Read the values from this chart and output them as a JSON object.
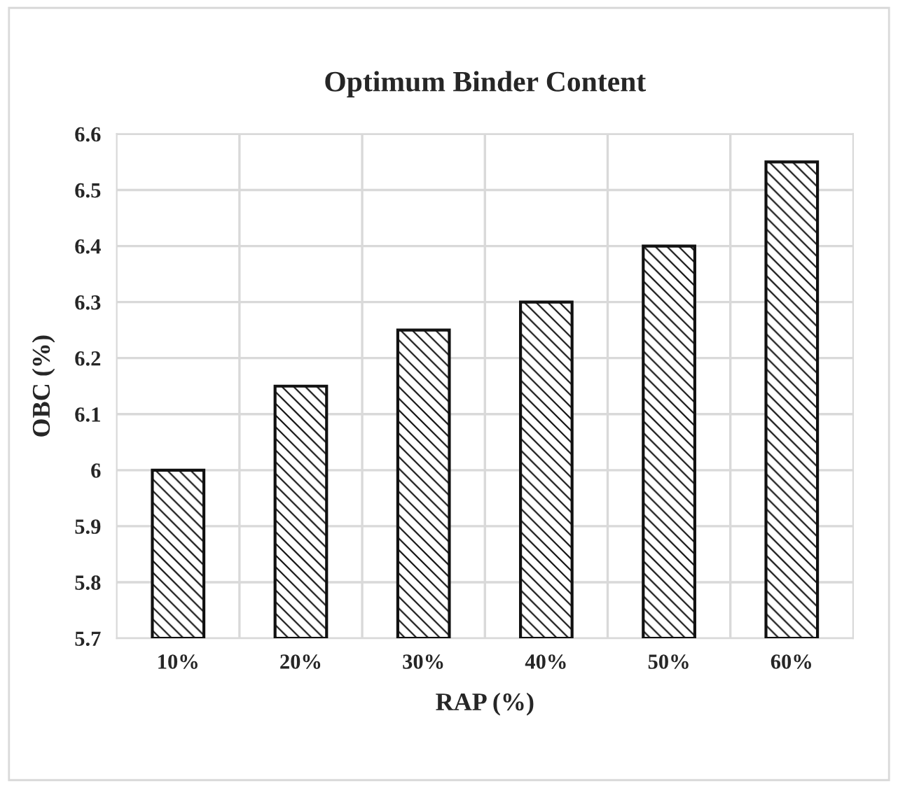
{
  "chart_data": {
    "type": "bar",
    "title": "Optimum Binder Content",
    "xlabel": "RAP (%)",
    "ylabel": "OBC (%)",
    "categories": [
      "10%",
      "20%",
      "30%",
      "40%",
      "50%",
      "60%"
    ],
    "values": [
      6.0,
      6.15,
      6.25,
      6.3,
      6.4,
      6.55
    ],
    "color": "#111111",
    "ylim": [
      5.7,
      6.6
    ],
    "yticks": [
      {
        "value": 5.7,
        "label": "5.7"
      },
      {
        "value": 5.8,
        "label": "5.8"
      },
      {
        "value": 5.9,
        "label": "5.9"
      },
      {
        "value": 6.0,
        "label": "6"
      },
      {
        "value": 6.1,
        "label": "6.1"
      },
      {
        "value": 6.2,
        "label": "6.2"
      },
      {
        "value": 6.3,
        "label": "6.3"
      },
      {
        "value": 6.4,
        "label": "6.4"
      },
      {
        "value": 6.5,
        "label": "6.5"
      },
      {
        "value": 6.6,
        "label": "6.6"
      }
    ],
    "grid": true,
    "legend": false
  }
}
